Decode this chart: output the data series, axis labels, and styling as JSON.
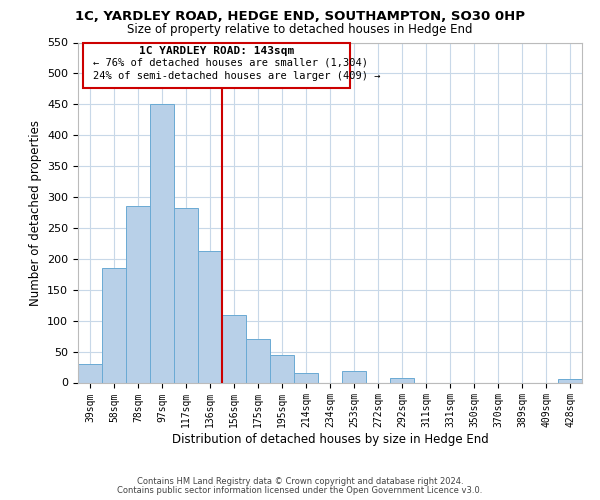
{
  "title": "1C, YARDLEY ROAD, HEDGE END, SOUTHAMPTON, SO30 0HP",
  "subtitle": "Size of property relative to detached houses in Hedge End",
  "xlabel": "Distribution of detached houses by size in Hedge End",
  "ylabel": "Number of detached properties",
  "bar_labels": [
    "39sqm",
    "58sqm",
    "78sqm",
    "97sqm",
    "117sqm",
    "136sqm",
    "156sqm",
    "175sqm",
    "195sqm",
    "214sqm",
    "234sqm",
    "253sqm",
    "272sqm",
    "292sqm",
    "311sqm",
    "331sqm",
    "350sqm",
    "370sqm",
    "389sqm",
    "409sqm",
    "428sqm"
  ],
  "bar_values": [
    30,
    185,
    285,
    450,
    283,
    212,
    110,
    70,
    45,
    15,
    0,
    18,
    0,
    8,
    0,
    0,
    0,
    0,
    0,
    0,
    5
  ],
  "bar_color": "#b8d0e8",
  "bar_edge_color": "#6aaad4",
  "vline_x": 5.5,
  "vline_color": "#cc0000",
  "ylim": [
    0,
    550
  ],
  "yticks": [
    0,
    50,
    100,
    150,
    200,
    250,
    300,
    350,
    400,
    450,
    500,
    550
  ],
  "annotation_title": "1C YARDLEY ROAD: 143sqm",
  "annotation_line1": "← 76% of detached houses are smaller (1,304)",
  "annotation_line2": "24% of semi-detached houses are larger (409) →",
  "annotation_box_color": "#ffffff",
  "annotation_box_edge": "#cc0000",
  "footer_line1": "Contains HM Land Registry data © Crown copyright and database right 2024.",
  "footer_line2": "Contains public sector information licensed under the Open Government Licence v3.0.",
  "background_color": "#ffffff",
  "grid_color": "#c8d8e8"
}
